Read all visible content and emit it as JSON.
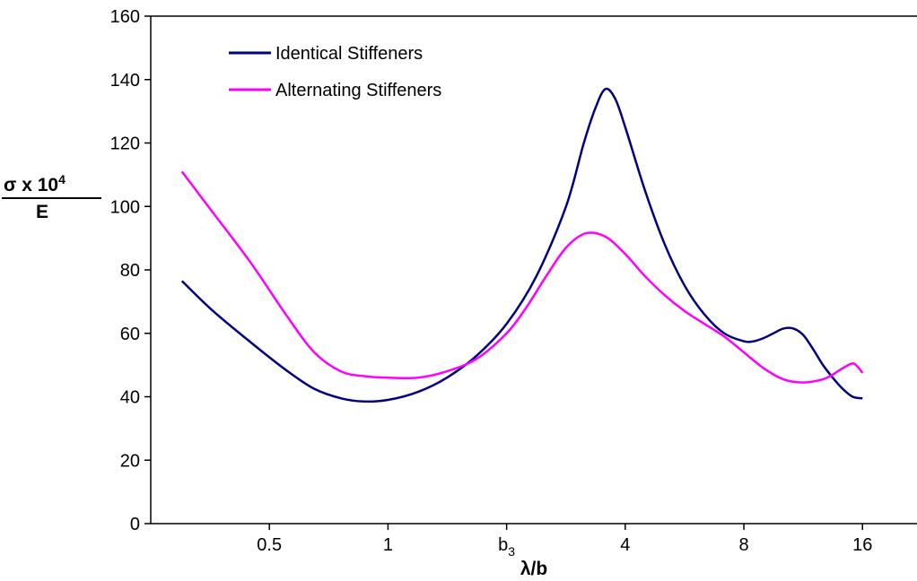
{
  "chart_data": {
    "type": "line",
    "ylabel": {
      "main": "σ x 10",
      "exponent": "4",
      "denominator": "E"
    },
    "xlabel": "λ/b",
    "ylim": [
      0,
      160
    ],
    "yticks": [
      0,
      20,
      40,
      60,
      80,
      100,
      120,
      140,
      160
    ],
    "xscale": "log2",
    "xlim": [
      0.25,
      22
    ],
    "xticks": [
      {
        "value": 0.5,
        "label": "0.5"
      },
      {
        "value": 1,
        "label": "1"
      },
      {
        "value": 2,
        "label": "b",
        "subscript": "3"
      },
      {
        "value": 4,
        "label": "4"
      },
      {
        "value": 8,
        "label": "8"
      },
      {
        "value": 16,
        "label": "16"
      }
    ],
    "grid": false,
    "legend_position": "top-left",
    "series": [
      {
        "name": "Identical Stiffeners",
        "color": "#000080",
        "x": [
          0.3,
          0.36,
          0.45,
          0.55,
          0.65,
          0.76,
          0.87,
          1.0,
          1.19,
          1.41,
          1.68,
          2.0,
          2.38,
          2.83,
          3.14,
          3.36,
          3.56,
          3.77,
          4.0,
          4.49,
          5.04,
          5.66,
          6.35,
          7.13,
          8.0,
          8.48,
          8.98,
          9.51,
          10.08,
          10.68,
          11.31,
          11.99,
          12.7,
          13.45,
          14.25,
          15.1,
          16.0
        ],
        "y": [
          76.5,
          67,
          57,
          48.5,
          42.5,
          39.5,
          38.5,
          39,
          41.5,
          46,
          53,
          63,
          78,
          100,
          120,
          131,
          137,
          134,
          125,
          105,
          88,
          75,
          66,
          60,
          57.5,
          57.5,
          58.5,
          60,
          61.5,
          61.5,
          59.5,
          55,
          50,
          46,
          42.5,
          40,
          39.5
        ]
      },
      {
        "name": "Alternating Stiffeners",
        "color": "#ff00ff",
        "x": [
          0.3,
          0.36,
          0.45,
          0.55,
          0.65,
          0.76,
          0.87,
          1.0,
          1.19,
          1.41,
          1.68,
          2.0,
          2.24,
          2.52,
          2.83,
          3.17,
          3.56,
          4.0,
          4.49,
          5.04,
          5.66,
          6.35,
          7.13,
          8.0,
          8.98,
          10.08,
          11.31,
          12.7,
          13.45,
          14.25,
          15.1,
          15.54,
          16.0
        ],
        "y": [
          111,
          98,
          82,
          66,
          54,
          48,
          46.5,
          46,
          46,
          48,
          52,
          60,
          68,
          78,
          87,
          91.5,
          90.5,
          85,
          78,
          72,
          67,
          63,
          59,
          54,
          49,
          45.5,
          44.5,
          45.5,
          47,
          49,
          50.5,
          49.5,
          47.5
        ]
      }
    ]
  }
}
